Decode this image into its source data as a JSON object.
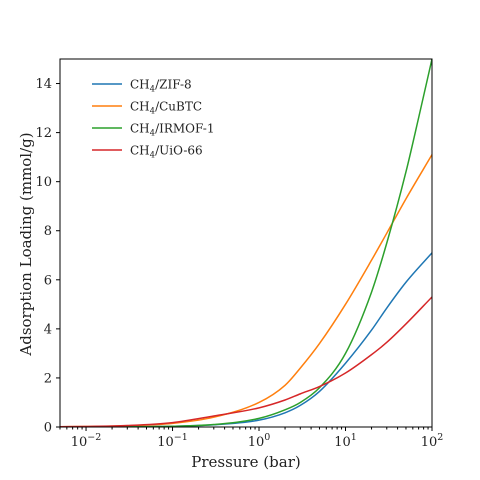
{
  "chart_data": {
    "type": "line",
    "xlabel": "Pressure (bar)",
    "ylabel": "Adsorption Loading (mmol/g)",
    "xscale": "log",
    "xlim": [
      0.005,
      100
    ],
    "ylim": [
      0,
      15
    ],
    "grid": false,
    "legend_position": "upper-left",
    "x_ticks": [
      {
        "value": 0.01,
        "base": "10",
        "exp": "−2"
      },
      {
        "value": 0.1,
        "base": "10",
        "exp": "−1"
      },
      {
        "value": 1,
        "base": "10",
        "exp": "0"
      },
      {
        "value": 10,
        "base": "10",
        "exp": "1"
      },
      {
        "value": 100,
        "base": "10",
        "exp": "2"
      }
    ],
    "y_ticks": [
      0,
      2,
      4,
      6,
      8,
      10,
      12,
      14
    ],
    "series": [
      {
        "name": "CH4/ZIF-8",
        "label_main": "CH",
        "label_sub": "4",
        "label_rest": "/ZIF-8",
        "color": "#1f77b4",
        "x": [
          0.005,
          0.01,
          0.03,
          0.1,
          0.3,
          1,
          2,
          3,
          5,
          10,
          20,
          30,
          50,
          100
        ],
        "y": [
          0.0,
          0.0,
          0.01,
          0.03,
          0.09,
          0.28,
          0.58,
          0.88,
          1.45,
          2.6,
          3.95,
          4.85,
          5.9,
          7.1
        ]
      },
      {
        "name": "CH4/CuBTC",
        "label_main": "CH",
        "label_sub": "4",
        "label_rest": "/CuBTC",
        "color": "#ff7f0e",
        "x": [
          0.005,
          0.01,
          0.03,
          0.1,
          0.3,
          1,
          2,
          3,
          5,
          10,
          20,
          30,
          50,
          100
        ],
        "y": [
          0.01,
          0.02,
          0.05,
          0.15,
          0.4,
          1.0,
          1.7,
          2.4,
          3.4,
          5.0,
          6.8,
          7.9,
          9.3,
          11.1
        ]
      },
      {
        "name": "CH4/IRMOF-1",
        "label_main": "CH",
        "label_sub": "4",
        "label_rest": "/IRMOF-1",
        "color": "#2ca02c",
        "x": [
          0.005,
          0.01,
          0.03,
          0.1,
          0.3,
          1,
          2,
          3,
          5,
          10,
          20,
          30,
          50,
          70,
          100
        ],
        "y": [
          0.0,
          0.0,
          0.01,
          0.03,
          0.1,
          0.35,
          0.7,
          1.0,
          1.6,
          3.0,
          5.5,
          7.5,
          10.4,
          12.6,
          15.0
        ]
      },
      {
        "name": "CH4/UiO-66",
        "label_main": "CH",
        "label_sub": "4",
        "label_rest": "/UiO-66",
        "color": "#d62728",
        "x": [
          0.005,
          0.01,
          0.03,
          0.1,
          0.3,
          1,
          2,
          3,
          5,
          10,
          20,
          30,
          50,
          100
        ],
        "y": [
          0.01,
          0.02,
          0.06,
          0.18,
          0.45,
          0.78,
          1.1,
          1.35,
          1.65,
          2.2,
          2.95,
          3.45,
          4.2,
          5.3
        ]
      }
    ]
  }
}
